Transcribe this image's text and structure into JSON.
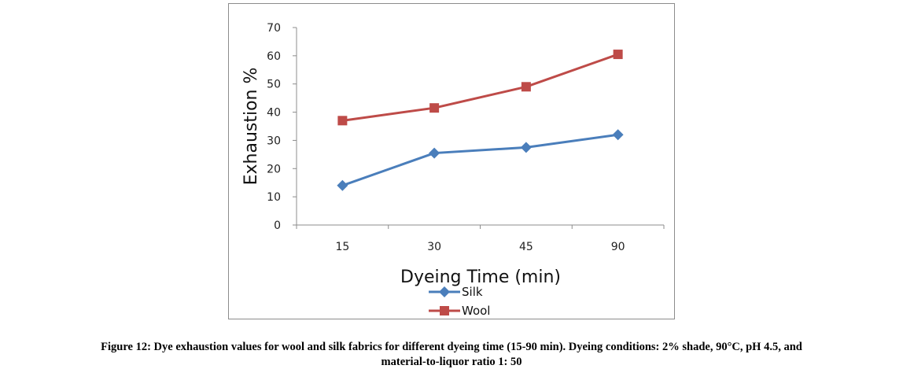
{
  "chart_data": {
    "type": "line",
    "categories": [
      "15",
      "30",
      "45",
      "90"
    ],
    "series": [
      {
        "name": "Silk",
        "values": [
          14,
          25.5,
          27.5,
          32
        ],
        "color": "#4a7ebb",
        "marker": "diamond"
      },
      {
        "name": "Wool",
        "values": [
          37,
          41.5,
          49,
          60.5
        ],
        "color": "#be4b48",
        "marker": "square"
      }
    ],
    "xlabel": "Dyeing Time (min)",
    "ylabel": "Exhaustion %",
    "ylim": [
      0,
      70
    ],
    "yticks": [
      0,
      10,
      20,
      30,
      40,
      50,
      60,
      70
    ],
    "grid": false,
    "legend": "bottom"
  },
  "caption": {
    "line1": "Figure 12: Dye exhaustion values for wool and silk fabrics for different dyeing time (15-90 min). Dyeing conditions: 2% shade, 90°C, pH 4.5, and",
    "line2": "material-to-liquor ratio 1: 50"
  }
}
